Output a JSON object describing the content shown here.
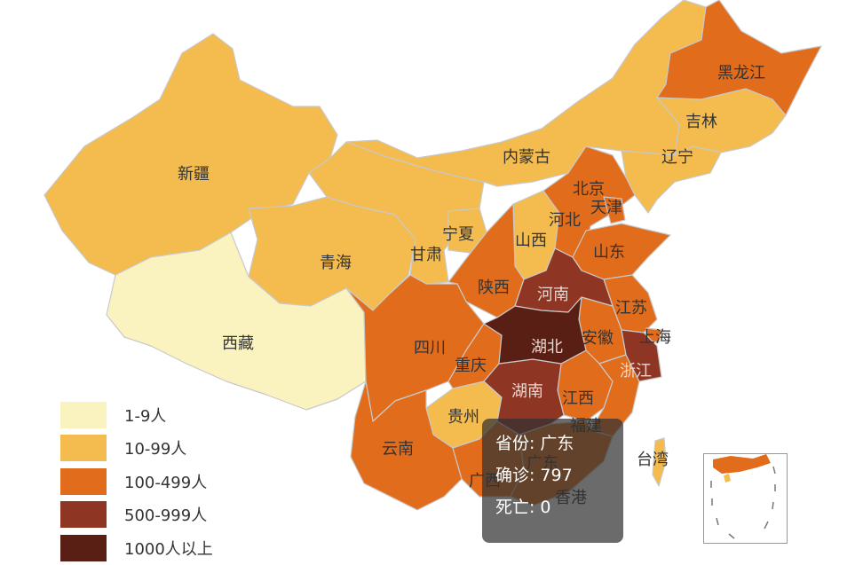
{
  "legend": [
    {
      "label": "1-9人",
      "color": "#faf3bf"
    },
    {
      "label": "10-99人",
      "color": "#f4bb4e"
    },
    {
      "label": "100-499人",
      "color": "#e06c1c"
    },
    {
      "label": "500-999人",
      "color": "#8e3524"
    },
    {
      "label": "1000人以上",
      "color": "#5a1f14"
    }
  ],
  "provinces": {
    "xinjiang": "新疆",
    "xizang": "西藏",
    "qinghai": "青海",
    "gansu": "甘肃",
    "neimenggu": "内蒙古",
    "heilongjiang": "黑龙江",
    "jilin": "吉林",
    "liaoning": "辽宁",
    "beijing": "北京",
    "tianjin": "天津",
    "hebei": "河北",
    "shanxi": "山西",
    "ningxia": "宁夏",
    "shaanxi": "陕西",
    "shandong": "山东",
    "henan": "河南",
    "jiangsu": "江苏",
    "shanghai": "上海",
    "anhui": "安徽",
    "hubei": "湖北",
    "sichuan": "四川",
    "chongqing": "重庆",
    "zhejiang": "浙江",
    "hunan": "湖南",
    "jiangxi": "江西",
    "guizhou": "贵州",
    "fujian": "福建",
    "yunnan": "云南",
    "guangxi": "广西",
    "guangdong": "广东",
    "xianggang": "香港",
    "taiwan": "台湾"
  },
  "tooltip": {
    "province_key": "省份:",
    "province_val": "广东",
    "confirmed_key": "确诊:",
    "confirmed_val": "797",
    "death_key": "死亡:",
    "death_val": "0"
  }
}
